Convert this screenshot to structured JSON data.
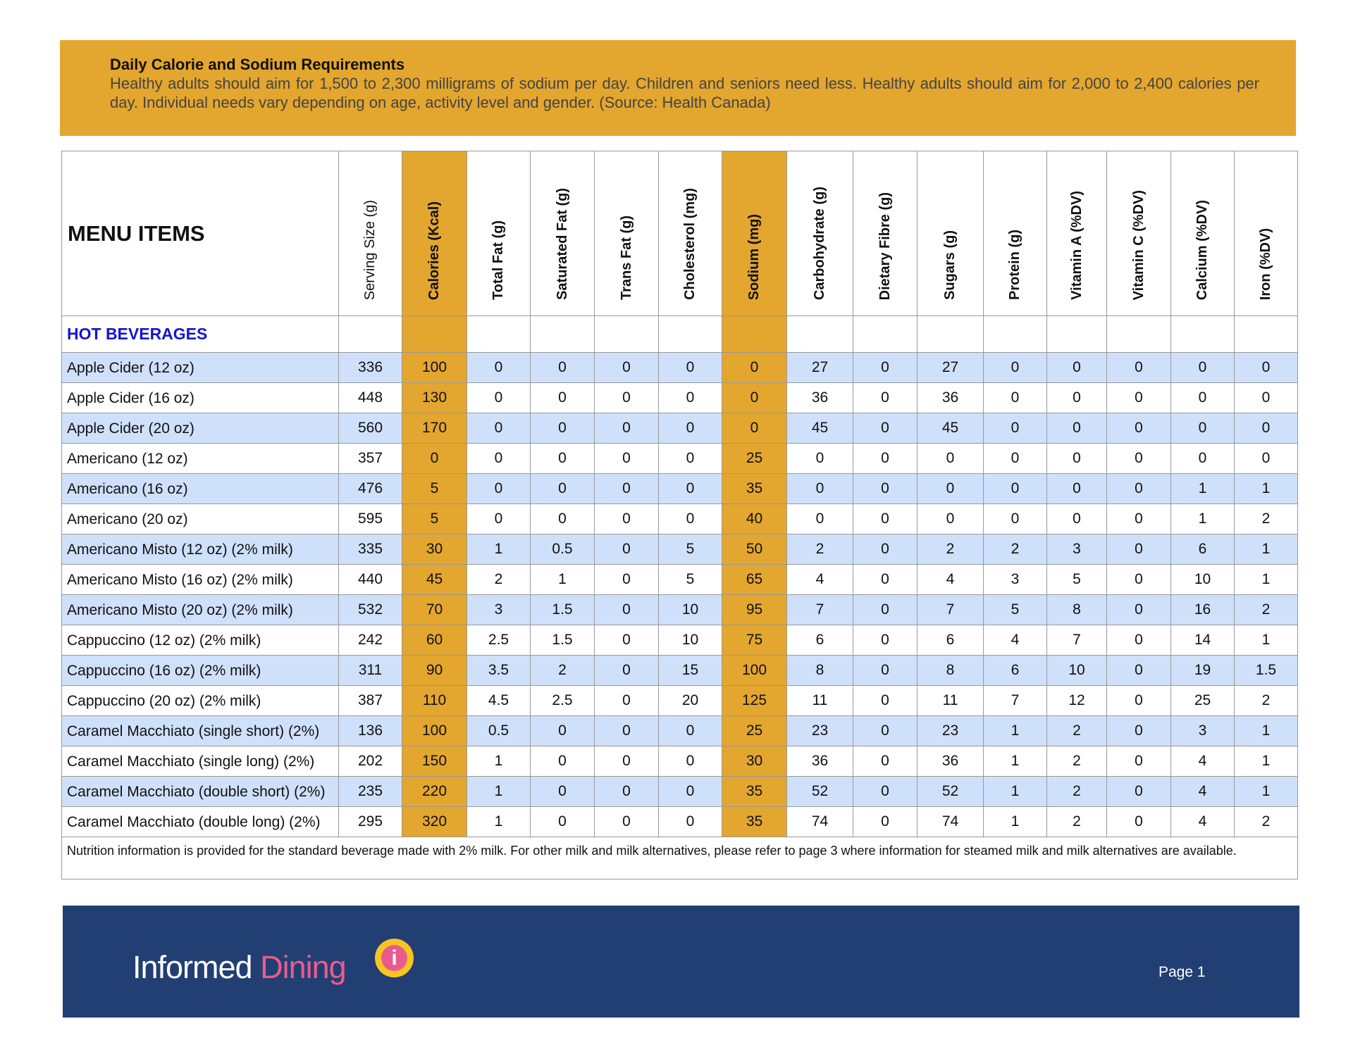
{
  "header": {
    "title": "Daily Calorie and Sodium Requirements",
    "text": "Healthy adults should aim for 1,500 to 2,300 milligrams of sodium per day. Children and seniors need less. Healthy adults should aim for 2,000 to 2,400 calories per day. Individual needs vary depending on age, activity level and gender. (Source: Health Canada)"
  },
  "table": {
    "title": "MENU ITEMS",
    "section": "HOT BEVERAGES",
    "columns": [
      "Serving Size (g)",
      "Calories (Kcal)",
      "Total Fat (g)",
      "Saturated Fat (g)",
      "Trans Fat (g)",
      "Cholesterol (mg)",
      "Sodium (mg)",
      "Carbohydrate (g)",
      "Dietary Fibre (g)",
      "Sugars  (g)",
      "Protein (g)",
      "Vitamin A (%DV)",
      "Vitamin C (%DV)",
      "Calcium (%DV)",
      "Iron (%DV)"
    ],
    "rows": [
      {
        "name": "Apple Cider (12 oz)",
        "values": [
          336,
          100,
          0,
          0,
          0,
          0,
          0,
          27,
          0,
          27,
          0,
          0,
          0,
          0,
          0
        ]
      },
      {
        "name": "Apple Cider (16 oz)",
        "values": [
          448,
          130,
          0,
          0,
          0,
          0,
          0,
          36,
          0,
          36,
          0,
          0,
          0,
          0,
          0
        ]
      },
      {
        "name": "Apple Cider (20 oz)",
        "values": [
          560,
          170,
          0,
          0,
          0,
          0,
          0,
          45,
          0,
          45,
          0,
          0,
          0,
          0,
          0
        ]
      },
      {
        "name": "Americano (12 oz)",
        "values": [
          357,
          0,
          0,
          0,
          0,
          0,
          25,
          0,
          0,
          0,
          0,
          0,
          0,
          0,
          0
        ]
      },
      {
        "name": "Americano (16 oz)",
        "values": [
          476,
          5,
          0,
          0,
          0,
          0,
          35,
          0,
          0,
          0,
          0,
          0,
          0,
          1,
          1
        ]
      },
      {
        "name": "Americano (20 oz)",
        "values": [
          595,
          5,
          0,
          0,
          0,
          0,
          40,
          0,
          0,
          0,
          0,
          0,
          0,
          1,
          2
        ]
      },
      {
        "name": "Americano Misto (12 oz) (2% milk)",
        "values": [
          335,
          30,
          1,
          0.5,
          0,
          5,
          50,
          2,
          0,
          2,
          2,
          3,
          0,
          6,
          1
        ]
      },
      {
        "name": "Americano Misto (16 oz) (2% milk)",
        "values": [
          440,
          45,
          2,
          1,
          0,
          5,
          65,
          4,
          0,
          4,
          3,
          5,
          0,
          10,
          1
        ]
      },
      {
        "name": "Americano Misto (20 oz) (2% milk)",
        "values": [
          532,
          70,
          3,
          1.5,
          0,
          10,
          95,
          7,
          0,
          7,
          5,
          8,
          0,
          16,
          2
        ]
      },
      {
        "name": "Cappuccino (12 oz) (2% milk)",
        "values": [
          242,
          60,
          2.5,
          1.5,
          0,
          10,
          75,
          6,
          0,
          6,
          4,
          7,
          0,
          14,
          1
        ]
      },
      {
        "name": "Cappuccino (16 oz) (2% milk)",
        "values": [
          311,
          90,
          3.5,
          2,
          0,
          15,
          100,
          8,
          0,
          8,
          6,
          10,
          0,
          19,
          1.5
        ]
      },
      {
        "name": "Cappuccino (20 oz) (2% milk)",
        "values": [
          387,
          110,
          4.5,
          2.5,
          0,
          20,
          125,
          11,
          0,
          11,
          7,
          12,
          0,
          25,
          2
        ]
      },
      {
        "name": "Caramel Macchiato (single short) (2%)",
        "values": [
          136,
          100,
          0.5,
          0,
          0,
          0,
          25,
          23,
          0,
          23,
          1,
          2,
          0,
          3,
          1
        ]
      },
      {
        "name": "Caramel Macchiato (single long) (2%)",
        "values": [
          202,
          150,
          1,
          0,
          0,
          0,
          30,
          36,
          0,
          36,
          1,
          2,
          0,
          4,
          1
        ]
      },
      {
        "name": "Caramel Macchiato (double short) (2%)",
        "values": [
          235,
          220,
          1,
          0,
          0,
          0,
          35,
          52,
          0,
          52,
          1,
          2,
          0,
          4,
          1
        ]
      },
      {
        "name": "Caramel Macchiato (double long) (2%)",
        "values": [
          295,
          320,
          1,
          0,
          0,
          0,
          35,
          74,
          0,
          74,
          1,
          2,
          0,
          4,
          2
        ]
      }
    ],
    "footnote": "Nutrition information is provided for the standard beverage made with 2% milk.  For other milk and milk alternatives, please refer to page 3 where information for steamed milk and milk alternatives are available."
  },
  "footer": {
    "brand_1": "Informed",
    "brand_2": "Dining",
    "page": "Page 1"
  }
}
